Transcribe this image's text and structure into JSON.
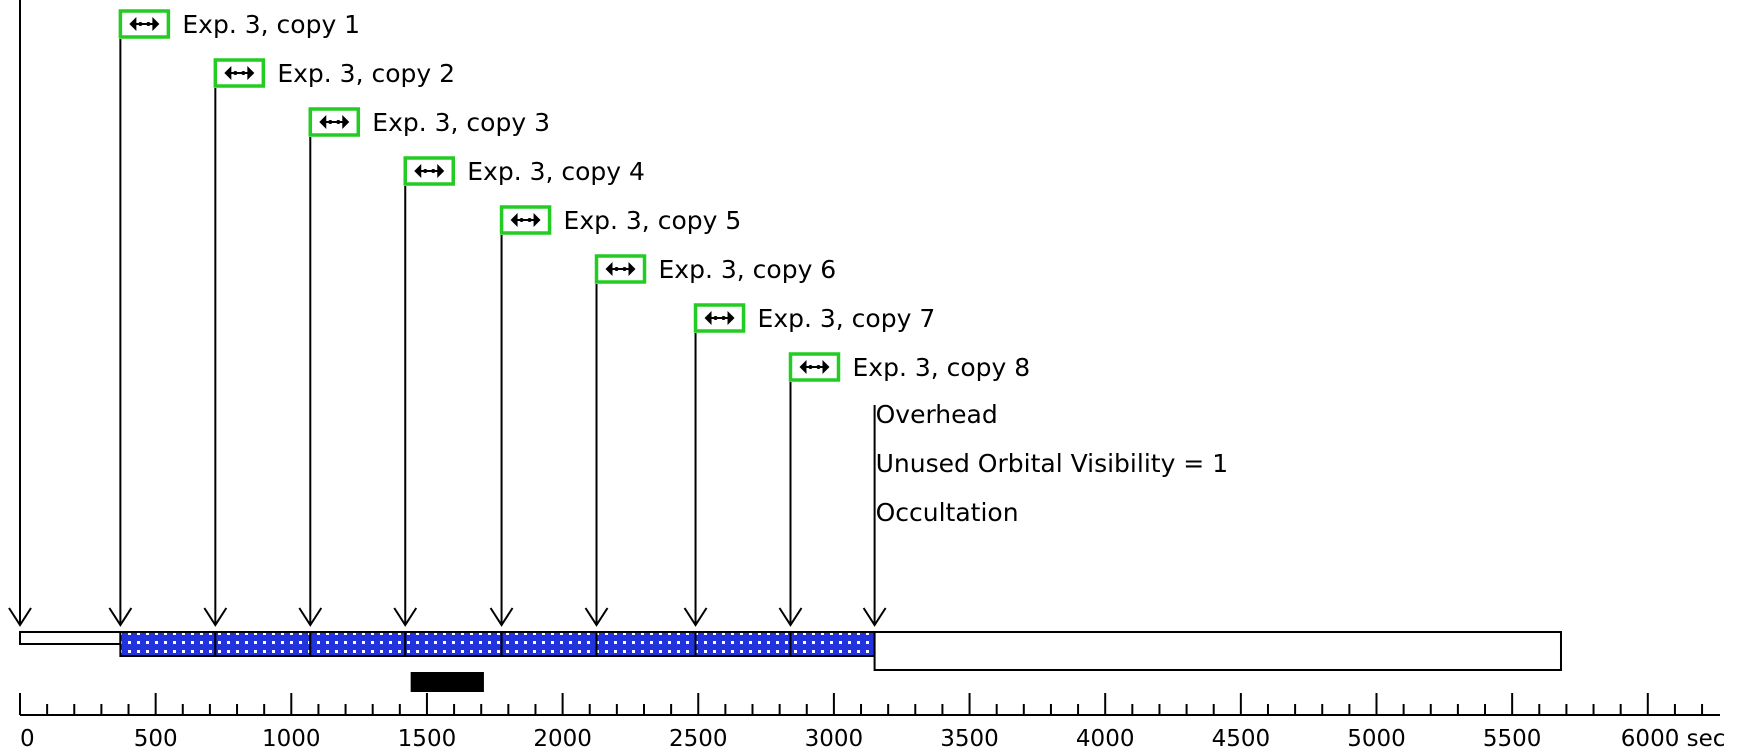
{
  "timeline": {
    "exposure_icon": "double-arrow-exposure-icon",
    "exposure_icon_border_color": "#22cc22",
    "fill_color": "#2233dd",
    "exposures": [
      {
        "label": "Exp. 3, copy 1",
        "start": 370,
        "end": 720
      },
      {
        "label": "Exp. 3, copy 2",
        "start": 720,
        "end": 1070
      },
      {
        "label": "Exp. 3, copy 3",
        "start": 1070,
        "end": 1420
      },
      {
        "label": "Exp. 3, copy 4",
        "start": 1420,
        "end": 1775
      },
      {
        "label": "Exp. 3, copy 5",
        "start": 1775,
        "end": 2125
      },
      {
        "label": "Exp. 3, copy 6",
        "start": 2125,
        "end": 2490
      },
      {
        "label": "Exp. 3, copy 7",
        "start": 2490,
        "end": 2840
      },
      {
        "label": "Exp. 3, copy 8",
        "start": 2840,
        "end": 3150
      }
    ],
    "events": [
      {
        "label": "Overhead"
      },
      {
        "label": "Unused Orbital Visibility = 1"
      },
      {
        "label": "Occultation"
      }
    ],
    "events_time": 3150,
    "start_arrow_time": 0,
    "initial_segment": {
      "start": 0,
      "end": 370
    },
    "unused_segment": {
      "start": 3150,
      "end": 5680
    },
    "marker_bar": {
      "start": 1440,
      "end": 1710
    }
  },
  "axis": {
    "min": 0,
    "max": 6200,
    "major_step": 500,
    "minor_step": 100,
    "labels": [
      "0",
      "500",
      "1000",
      "1500",
      "2000",
      "2500",
      "3000",
      "3500",
      "4000",
      "4500",
      "5000",
      "5500",
      "6000 sec"
    ]
  }
}
